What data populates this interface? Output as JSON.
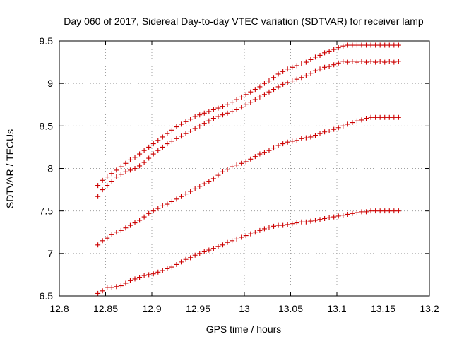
{
  "chart_data": {
    "type": "scatter",
    "title": "Day 060 of 2017, Sidereal Day-to-day VTEC variation (SDTVAR) for receiver lamp",
    "xlabel": "GPS time / hours",
    "ylabel": "SDTVAR / TECUs",
    "xlim": [
      12.8,
      13.2
    ],
    "ylim": [
      6.5,
      9.5
    ],
    "xticks": [
      "12.8",
      "12.85",
      "12.9",
      "12.95",
      "13",
      "13.05",
      "13.1",
      "13.15",
      "13.2"
    ],
    "yticks": [
      "6.5",
      "7",
      "7.5",
      "8",
      "8.5",
      "9",
      "9.5"
    ],
    "grid": true,
    "marker_color": "#cc0000",
    "series": [
      {
        "name": "series-1",
        "x": [
          12.8417,
          12.8467,
          12.8517,
          12.8567,
          12.8617,
          12.8667,
          12.8717,
          12.8767,
          12.8817,
          12.8867,
          12.8917,
          12.8967,
          12.9017,
          12.9067,
          12.9117,
          12.9167,
          12.9217,
          12.9267,
          12.9317,
          12.9367,
          12.9417,
          12.9467,
          12.9517,
          12.9567,
          12.9617,
          12.9667,
          12.9717,
          12.9767,
          12.9817,
          12.9867,
          12.9917,
          12.9967,
          13.0017,
          13.0067,
          13.0117,
          13.0167,
          13.0217,
          13.0267,
          13.0317,
          13.0367,
          13.0417,
          13.0467,
          13.0517,
          13.0567,
          13.0617,
          13.0667,
          13.0717,
          13.0767,
          13.0817,
          13.0867,
          13.0917,
          13.0967,
          13.1017,
          13.1067,
          13.1117,
          13.1167,
          13.1217,
          13.1267,
          13.1317,
          13.1367,
          13.1417,
          13.1467,
          13.1517,
          13.1567,
          13.1617,
          13.1667
        ],
        "y": [
          6.53,
          6.56,
          6.6,
          6.6,
          6.61,
          6.62,
          6.65,
          6.68,
          6.7,
          6.72,
          6.74,
          6.75,
          6.76,
          6.78,
          6.8,
          6.82,
          6.84,
          6.87,
          6.9,
          6.93,
          6.95,
          6.98,
          7.0,
          7.02,
          7.04,
          7.06,
          7.08,
          7.1,
          7.13,
          7.15,
          7.17,
          7.19,
          7.21,
          7.23,
          7.25,
          7.27,
          7.29,
          7.31,
          7.32,
          7.33,
          7.33,
          7.34,
          7.35,
          7.36,
          7.37,
          7.37,
          7.38,
          7.39,
          7.4,
          7.41,
          7.42,
          7.43,
          7.44,
          7.45,
          7.46,
          7.47,
          7.48,
          7.49,
          7.49,
          7.5,
          7.5,
          7.5,
          7.5,
          7.5,
          7.5,
          7.5
        ]
      },
      {
        "name": "series-2",
        "x": [
          12.8417,
          12.8467,
          12.8517,
          12.8567,
          12.8617,
          12.8667,
          12.8717,
          12.8767,
          12.8817,
          12.8867,
          12.8917,
          12.8967,
          12.9017,
          12.9067,
          12.9117,
          12.9167,
          12.9217,
          12.9267,
          12.9317,
          12.9367,
          12.9417,
          12.9467,
          12.9517,
          12.9567,
          12.9617,
          12.9667,
          12.9717,
          12.9767,
          12.9817,
          12.9867,
          12.9917,
          12.9967,
          13.0017,
          13.0067,
          13.0117,
          13.0167,
          13.0217,
          13.0267,
          13.0317,
          13.0367,
          13.0417,
          13.0467,
          13.0517,
          13.0567,
          13.0617,
          13.0667,
          13.0717,
          13.0767,
          13.0817,
          13.0867,
          13.0917,
          13.0967,
          13.1017,
          13.1067,
          13.1117,
          13.1167,
          13.1217,
          13.1267,
          13.1317,
          13.1367,
          13.1417,
          13.1467,
          13.1517,
          13.1567,
          13.1617,
          13.1667
        ],
        "y": [
          7.1,
          7.15,
          7.18,
          7.22,
          7.25,
          7.27,
          7.3,
          7.33,
          7.36,
          7.39,
          7.43,
          7.47,
          7.5,
          7.53,
          7.56,
          7.58,
          7.61,
          7.64,
          7.67,
          7.7,
          7.73,
          7.76,
          7.79,
          7.82,
          7.85,
          7.88,
          7.92,
          7.96,
          7.99,
          8.02,
          8.04,
          8.06,
          8.08,
          8.11,
          8.14,
          8.17,
          8.19,
          8.21,
          8.24,
          8.27,
          8.29,
          8.31,
          8.32,
          8.33,
          8.35,
          8.36,
          8.37,
          8.39,
          8.41,
          8.43,
          8.44,
          8.46,
          8.48,
          8.5,
          8.52,
          8.54,
          8.56,
          8.57,
          8.59,
          8.6,
          8.6,
          8.6,
          8.6,
          8.6,
          8.6,
          8.6
        ]
      },
      {
        "name": "series-3",
        "x": [
          12.8417,
          12.8467,
          12.8517,
          12.8567,
          12.8617,
          12.8667,
          12.8717,
          12.8767,
          12.8817,
          12.8867,
          12.8917,
          12.8967,
          12.9017,
          12.9067,
          12.9117,
          12.9167,
          12.9217,
          12.9267,
          12.9317,
          12.9367,
          12.9417,
          12.9467,
          12.9517,
          12.9567,
          12.9617,
          12.9667,
          12.9717,
          12.9767,
          12.9817,
          12.9867,
          12.9917,
          12.9967,
          13.0017,
          13.0067,
          13.0117,
          13.0167,
          13.0217,
          13.0267,
          13.0317,
          13.0367,
          13.0417,
          13.0467,
          13.0517,
          13.0567,
          13.0617,
          13.0667,
          13.0717,
          13.0767,
          13.0817,
          13.0867,
          13.0917,
          13.0967,
          13.1017,
          13.1067,
          13.1117,
          13.1167,
          13.1217,
          13.1267,
          13.1317,
          13.1367,
          13.1417,
          13.1467,
          13.1517,
          13.1567,
          13.1617,
          13.1667
        ],
        "y": [
          7.67,
          7.75,
          7.8,
          7.85,
          7.9,
          7.93,
          7.96,
          7.98,
          8.0,
          8.03,
          8.07,
          8.12,
          8.17,
          8.21,
          8.25,
          8.29,
          8.32,
          8.35,
          8.38,
          8.41,
          8.44,
          8.47,
          8.5,
          8.53,
          8.56,
          8.59,
          8.61,
          8.63,
          8.65,
          8.67,
          8.69,
          8.72,
          8.75,
          8.78,
          8.81,
          8.84,
          8.87,
          8.9,
          8.93,
          8.96,
          8.99,
          9.01,
          9.03,
          9.05,
          9.07,
          9.09,
          9.12,
          9.15,
          9.17,
          9.19,
          9.2,
          9.22,
          9.24,
          9.26,
          9.25,
          9.26,
          9.25,
          9.26,
          9.25,
          9.26,
          9.25,
          9.26,
          9.25,
          9.26,
          9.25,
          9.26
        ]
      },
      {
        "name": "series-4",
        "x": [
          12.8417,
          12.8467,
          12.8517,
          12.8567,
          12.8617,
          12.8667,
          12.8717,
          12.8767,
          12.8817,
          12.8867,
          12.8917,
          12.8967,
          12.9017,
          12.9067,
          12.9117,
          12.9167,
          12.9217,
          12.9267,
          12.9317,
          12.9367,
          12.9417,
          12.9467,
          12.9517,
          12.9567,
          12.9617,
          12.9667,
          12.9717,
          12.9767,
          12.9817,
          12.9867,
          12.9917,
          12.9967,
          13.0017,
          13.0067,
          13.0117,
          13.0167,
          13.0217,
          13.0267,
          13.0317,
          13.0367,
          13.0417,
          13.0467,
          13.0517,
          13.0567,
          13.0617,
          13.0667,
          13.0717,
          13.0767,
          13.0817,
          13.0867,
          13.0917,
          13.0967,
          13.1017,
          13.1067,
          13.1117,
          13.1167,
          13.1217,
          13.1267,
          13.1317,
          13.1367,
          13.1417,
          13.1467,
          13.1517,
          13.1567,
          13.1617,
          13.1667
        ],
        "y": [
          7.8,
          7.86,
          7.9,
          7.94,
          7.98,
          8.02,
          8.06,
          8.1,
          8.13,
          8.17,
          8.21,
          8.25,
          8.29,
          8.33,
          8.37,
          8.41,
          8.45,
          8.49,
          8.52,
          8.55,
          8.58,
          8.61,
          8.63,
          8.65,
          8.67,
          8.69,
          8.71,
          8.73,
          8.75,
          8.78,
          8.81,
          8.84,
          8.87,
          8.9,
          8.93,
          8.96,
          9.0,
          9.03,
          9.07,
          9.11,
          9.14,
          9.17,
          9.19,
          9.21,
          9.23,
          9.25,
          9.28,
          9.31,
          9.33,
          9.36,
          9.38,
          9.4,
          9.42,
          9.44,
          9.45,
          9.45,
          9.45,
          9.45,
          9.45,
          9.45,
          9.45,
          9.45,
          9.45,
          9.45,
          9.45,
          9.45
        ]
      }
    ]
  }
}
